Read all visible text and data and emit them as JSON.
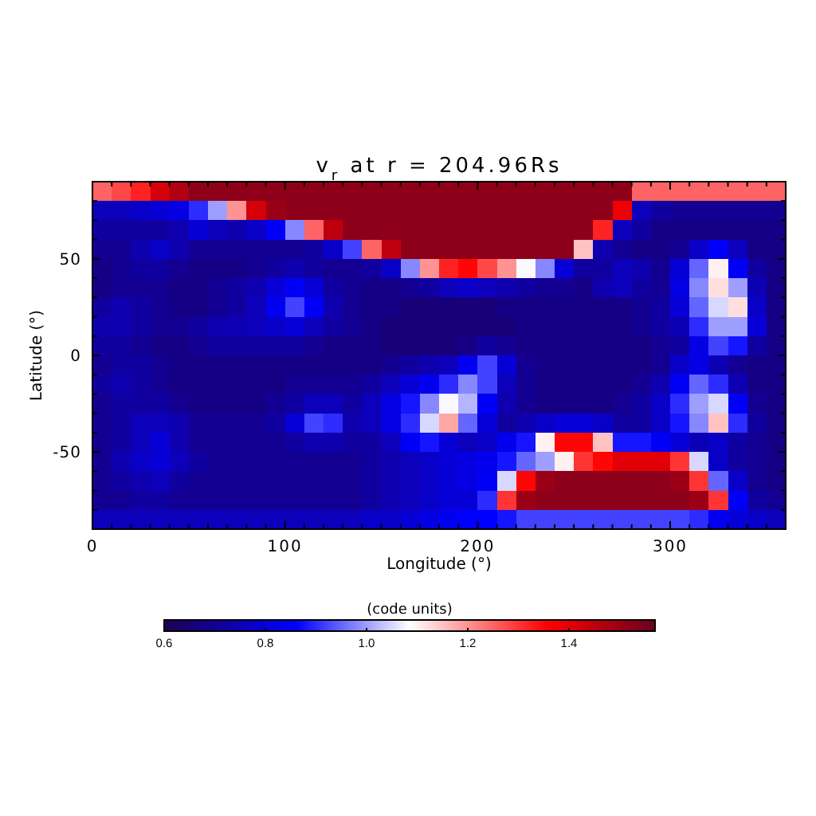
{
  "chart_data": {
    "type": "heatmap",
    "title": "v$_{r}$ at r = 204.96Rs",
    "xlabel": "Longitude (°)",
    "ylabel": "Latitude (°)",
    "clabel": "(code units)",
    "x": [
      5,
      15,
      25,
      35,
      45,
      55,
      65,
      75,
      85,
      95,
      105,
      115,
      125,
      135,
      145,
      155,
      165,
      175,
      185,
      195,
      205,
      215,
      225,
      235,
      245,
      255,
      265,
      275,
      285,
      295,
      305,
      315,
      325,
      335,
      345,
      355
    ],
    "y": [
      85,
      75,
      65,
      55,
      45,
      35,
      25,
      15,
      5,
      -5,
      -15,
      -25,
      -35,
      -45,
      -55,
      -65,
      -75,
      -85
    ],
    "xlim": [
      0,
      360
    ],
    "xticks": [
      0,
      {
        "value": 10,
        "label": null
      },
      {
        "value": 20,
        "label": null
      },
      {
        "value": 30,
        "label": null
      },
      {
        "value": 40,
        "label": null
      },
      {
        "value": 50,
        "label": null
      },
      {
        "value": 60,
        "label": null
      },
      {
        "value": 70,
        "label": null
      },
      {
        "value": 80,
        "label": null
      },
      {
        "value": 90,
        "label": null
      },
      100,
      {
        "value": 110,
        "label": null
      },
      {
        "value": 120,
        "label": null
      },
      {
        "value": 130,
        "label": null
      },
      {
        "value": 140,
        "label": null
      },
      {
        "value": 150,
        "label": null
      },
      {
        "value": 160,
        "label": null
      },
      {
        "value": 170,
        "label": null
      },
      {
        "value": 180,
        "label": null
      },
      {
        "value": 190,
        "label": null
      },
      200,
      {
        "value": 210,
        "label": null
      },
      {
        "value": 220,
        "label": null
      },
      {
        "value": 230,
        "label": null
      },
      {
        "value": 240,
        "label": null
      },
      {
        "value": 250,
        "label": null
      },
      {
        "value": 260,
        "label": null
      },
      {
        "value": 270,
        "label": null
      },
      {
        "value": 280,
        "label": null
      },
      {
        "value": 290,
        "label": null
      },
      300,
      {
        "value": 310,
        "label": null
      },
      {
        "value": 320,
        "label": null
      },
      {
        "value": 330,
        "label": null
      },
      {
        "value": 340,
        "label": null
      },
      {
        "value": 350,
        "label": null
      }
    ],
    "ylim": [
      -90,
      90
    ],
    "yticks": [
      {
        "value": -80,
        "label": null
      },
      {
        "value": -70,
        "label": null
      },
      {
        "value": -60,
        "label": null
      },
      -50,
      {
        "value": -40,
        "label": null
      },
      {
        "value": -30,
        "label": null
      },
      {
        "value": -20,
        "label": null
      },
      {
        "value": -10,
        "label": null
      },
      0,
      {
        "value": 10,
        "label": null
      },
      {
        "value": 20,
        "label": null
      },
      {
        "value": 30,
        "label": null
      },
      {
        "value": 40,
        "label": null
      },
      50,
      {
        "value": 60,
        "label": null
      },
      {
        "value": 70,
        "label": null
      },
      {
        "value": 80,
        "label": null
      }
    ],
    "clim": [
      0.6,
      1.57
    ],
    "cticks": [
      0.6,
      0.8,
      {
        "value": 1,
        "label": "1.0"
      },
      1.2,
      1.4
    ],
    "cells": [
      [
        1.25,
        1.28,
        1.32,
        1.42,
        1.47,
        1.52,
        1.52,
        1.52,
        1.52,
        1.52,
        1.52,
        1.52,
        1.52,
        1.52,
        1.52,
        1.52,
        1.52,
        1.52,
        1.52,
        1.52,
        1.52,
        1.52,
        1.52,
        1.52,
        1.52,
        1.52,
        1.52,
        1.52,
        1.25,
        1.25,
        1.25,
        1.25,
        1.25,
        1.25,
        1.25,
        1.25
      ],
      [
        0.76,
        0.76,
        0.78,
        0.8,
        0.82,
        0.9,
        1.0,
        1.2,
        1.42,
        1.5,
        1.52,
        1.52,
        1.52,
        1.52,
        1.52,
        1.52,
        1.52,
        1.52,
        1.52,
        1.52,
        1.52,
        1.52,
        1.52,
        1.52,
        1.52,
        1.52,
        1.52,
        1.38,
        0.76,
        0.72,
        0.7,
        0.7,
        0.7,
        0.7,
        0.7,
        0.7
      ],
      [
        0.72,
        0.72,
        0.72,
        0.72,
        0.74,
        0.8,
        0.76,
        0.74,
        0.78,
        0.85,
        0.98,
        1.25,
        1.45,
        1.52,
        1.52,
        1.52,
        1.52,
        1.52,
        1.52,
        1.52,
        1.52,
        1.52,
        1.52,
        1.52,
        1.52,
        1.52,
        1.32,
        0.76,
        0.72,
        0.68,
        0.68,
        0.68,
        0.68,
        0.68,
        0.68,
        0.68
      ],
      [
        0.7,
        0.7,
        0.74,
        0.78,
        0.74,
        0.7,
        0.7,
        0.7,
        0.7,
        0.7,
        0.7,
        0.72,
        0.78,
        0.92,
        1.25,
        1.45,
        1.52,
        1.52,
        1.52,
        1.52,
        1.52,
        1.52,
        1.52,
        1.52,
        1.52,
        1.15,
        0.74,
        0.7,
        0.68,
        0.68,
        0.7,
        0.78,
        0.85,
        0.76,
        0.68,
        0.68
      ],
      [
        0.68,
        0.7,
        0.72,
        0.72,
        0.7,
        0.68,
        0.68,
        0.68,
        0.7,
        0.72,
        0.74,
        0.72,
        0.7,
        0.7,
        0.72,
        0.78,
        0.98,
        1.2,
        1.32,
        1.35,
        1.28,
        1.2,
        1.08,
        0.98,
        0.8,
        0.72,
        0.72,
        0.76,
        0.74,
        0.7,
        0.8,
        0.95,
        1.1,
        0.85,
        0.72,
        0.68
      ],
      [
        0.68,
        0.7,
        0.7,
        0.7,
        0.68,
        0.68,
        0.7,
        0.72,
        0.74,
        0.8,
        0.85,
        0.8,
        0.72,
        0.7,
        0.68,
        0.68,
        0.7,
        0.72,
        0.76,
        0.78,
        0.76,
        0.74,
        0.72,
        0.7,
        0.7,
        0.68,
        0.74,
        0.76,
        0.72,
        0.7,
        0.82,
        0.98,
        1.12,
        1.0,
        0.75,
        0.68
      ],
      [
        0.72,
        0.74,
        0.72,
        0.7,
        0.68,
        0.68,
        0.7,
        0.72,
        0.76,
        0.84,
        0.92,
        0.85,
        0.74,
        0.7,
        0.68,
        0.68,
        0.66,
        0.66,
        0.66,
        0.66,
        0.66,
        0.68,
        0.68,
        0.68,
        0.68,
        0.68,
        0.68,
        0.68,
        0.7,
        0.72,
        0.8,
        0.95,
        1.05,
        1.12,
        0.78,
        0.68
      ],
      [
        0.74,
        0.74,
        0.72,
        0.7,
        0.7,
        0.72,
        0.74,
        0.75,
        0.76,
        0.78,
        0.8,
        0.76,
        0.72,
        0.7,
        0.68,
        0.66,
        0.66,
        0.66,
        0.66,
        0.66,
        0.66,
        0.66,
        0.68,
        0.68,
        0.68,
        0.68,
        0.68,
        0.68,
        0.7,
        0.72,
        0.75,
        0.9,
        1.0,
        1.0,
        0.8,
        0.68
      ],
      [
        0.72,
        0.72,
        0.7,
        0.68,
        0.68,
        0.7,
        0.72,
        0.72,
        0.72,
        0.72,
        0.72,
        0.7,
        0.68,
        0.68,
        0.68,
        0.66,
        0.66,
        0.66,
        0.66,
        0.68,
        0.72,
        0.7,
        0.68,
        0.68,
        0.68,
        0.68,
        0.68,
        0.68,
        0.68,
        0.7,
        0.72,
        0.82,
        0.92,
        0.88,
        0.72,
        0.68
      ],
      [
        0.7,
        0.72,
        0.72,
        0.7,
        0.68,
        0.68,
        0.68,
        0.68,
        0.68,
        0.68,
        0.68,
        0.68,
        0.68,
        0.68,
        0.68,
        0.7,
        0.72,
        0.74,
        0.76,
        0.84,
        0.92,
        0.8,
        0.7,
        0.68,
        0.68,
        0.68,
        0.68,
        0.68,
        0.68,
        0.7,
        0.78,
        0.82,
        0.75,
        0.7,
        0.68,
        0.68
      ],
      [
        0.72,
        0.74,
        0.72,
        0.7,
        0.68,
        0.68,
        0.68,
        0.68,
        0.68,
        0.68,
        0.7,
        0.7,
        0.7,
        0.7,
        0.72,
        0.76,
        0.8,
        0.84,
        0.9,
        0.98,
        0.92,
        0.76,
        0.7,
        0.68,
        0.68,
        0.68,
        0.68,
        0.68,
        0.7,
        0.74,
        0.85,
        0.95,
        0.9,
        0.75,
        0.68,
        0.68
      ],
      [
        0.7,
        0.72,
        0.72,
        0.72,
        0.7,
        0.68,
        0.68,
        0.68,
        0.68,
        0.7,
        0.72,
        0.76,
        0.76,
        0.72,
        0.76,
        0.82,
        0.88,
        0.98,
        1.08,
        1.02,
        0.85,
        0.74,
        0.7,
        0.68,
        0.68,
        0.68,
        0.68,
        0.7,
        0.72,
        0.78,
        0.9,
        1.0,
        1.05,
        0.85,
        0.7,
        0.68
      ],
      [
        0.7,
        0.72,
        0.76,
        0.76,
        0.74,
        0.7,
        0.7,
        0.7,
        0.7,
        0.72,
        0.8,
        0.92,
        0.9,
        0.74,
        0.76,
        0.82,
        0.9,
        1.05,
        1.18,
        0.95,
        0.8,
        0.72,
        0.74,
        0.78,
        0.8,
        0.8,
        0.78,
        0.72,
        0.72,
        0.78,
        0.88,
        0.98,
        1.15,
        0.9,
        0.72,
        0.68
      ],
      [
        0.7,
        0.72,
        0.76,
        0.8,
        0.74,
        0.7,
        0.7,
        0.7,
        0.7,
        0.7,
        0.72,
        0.74,
        0.74,
        0.72,
        0.72,
        0.76,
        0.85,
        0.88,
        0.8,
        0.76,
        0.78,
        0.84,
        0.88,
        1.1,
        1.35,
        1.35,
        1.15,
        0.88,
        0.88,
        0.85,
        0.8,
        0.75,
        0.78,
        0.72,
        0.7,
        0.68
      ],
      [
        0.7,
        0.74,
        0.78,
        0.8,
        0.76,
        0.72,
        0.7,
        0.7,
        0.7,
        0.7,
        0.7,
        0.7,
        0.7,
        0.7,
        0.72,
        0.74,
        0.76,
        0.78,
        0.8,
        0.82,
        0.84,
        0.88,
        0.95,
        1.0,
        1.1,
        1.3,
        1.35,
        1.4,
        1.4,
        1.4,
        1.3,
        1.05,
        0.78,
        0.72,
        0.7,
        0.68
      ],
      [
        0.7,
        0.72,
        0.74,
        0.76,
        0.72,
        0.7,
        0.7,
        0.7,
        0.7,
        0.7,
        0.7,
        0.7,
        0.7,
        0.7,
        0.72,
        0.74,
        0.76,
        0.78,
        0.8,
        0.82,
        0.85,
        1.05,
        1.35,
        1.5,
        1.52,
        1.52,
        1.52,
        1.52,
        1.52,
        1.52,
        1.5,
        1.3,
        0.95,
        0.78,
        0.7,
        0.68
      ],
      [
        0.7,
        0.7,
        0.72,
        0.72,
        0.7,
        0.7,
        0.7,
        0.7,
        0.7,
        0.7,
        0.7,
        0.7,
        0.7,
        0.7,
        0.72,
        0.74,
        0.76,
        0.78,
        0.8,
        0.8,
        0.9,
        1.3,
        1.5,
        1.52,
        1.52,
        1.52,
        1.52,
        1.52,
        1.52,
        1.52,
        1.52,
        1.5,
        1.3,
        0.85,
        0.72,
        0.7
      ],
      [
        0.76,
        0.76,
        0.76,
        0.76,
        0.76,
        0.76,
        0.76,
        0.76,
        0.76,
        0.76,
        0.76,
        0.76,
        0.76,
        0.76,
        0.78,
        0.78,
        0.8,
        0.82,
        0.84,
        0.86,
        0.86,
        0.88,
        0.92,
        0.92,
        0.92,
        0.92,
        0.92,
        0.92,
        0.92,
        0.92,
        0.92,
        0.9,
        0.84,
        0.8,
        0.78,
        0.76
      ]
    ]
  }
}
